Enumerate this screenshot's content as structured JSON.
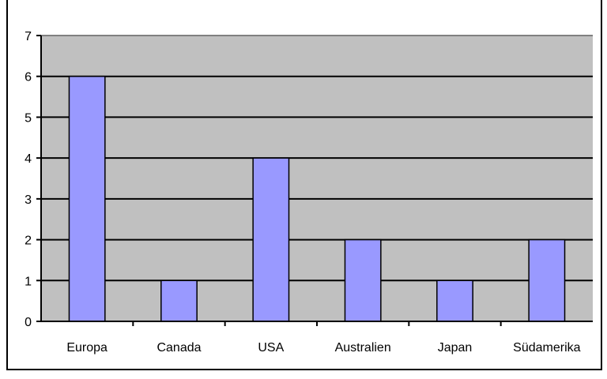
{
  "chart_data": {
    "type": "bar",
    "title": "",
    "xlabel": "",
    "ylabel": "",
    "categories": [
      "Europa",
      "Canada",
      "USA",
      "Australien",
      "Japan",
      "Südamerika"
    ],
    "values": [
      6,
      1,
      4,
      2,
      1,
      2
    ],
    "ylim": [
      0,
      7
    ],
    "yticks": [
      "0",
      "1",
      "2",
      "3",
      "4",
      "5",
      "6",
      "7"
    ],
    "grid": true,
    "legend": "none",
    "colors": {
      "bar": "#9999ff",
      "plot_background": "#c0c0c0",
      "gridline": "#000000"
    }
  }
}
